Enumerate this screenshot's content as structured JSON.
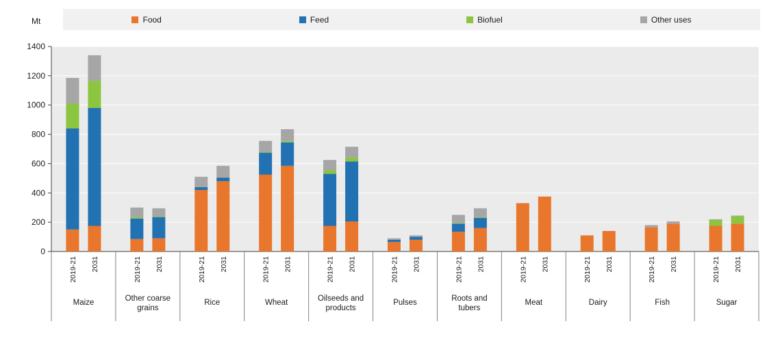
{
  "unit_label": "Mt",
  "legend": [
    {
      "label": "Food",
      "color": "#e8762c"
    },
    {
      "label": "Feed",
      "color": "#2271b3"
    },
    {
      "label": "Biofuel",
      "color": "#8cc540"
    },
    {
      "label": "Other uses",
      "color": "#a6a6a6"
    }
  ],
  "chart_data": {
    "type": "bar",
    "stacked": true,
    "title": "",
    "xlabel": "",
    "ylabel": "Mt",
    "ylim": [
      0,
      1400
    ],
    "ytick_step": 200,
    "grid": true,
    "legend_position": "top",
    "plot_bg": "#ebebeb",
    "grid_color": "#ffffff",
    "series_names": [
      "Food",
      "Feed",
      "Biofuel",
      "Other uses"
    ],
    "series_colors": [
      "#e8762c",
      "#2271b3",
      "#8cc540",
      "#a6a6a6"
    ],
    "bar_labels": [
      "2019-21",
      "2031"
    ],
    "groups": [
      {
        "name": "Maize",
        "bars": [
          {
            "label": "2019-21",
            "values": [
              150,
              690,
              170,
              175
            ]
          },
          {
            "label": "2031",
            "values": [
              175,
              805,
              185,
              175
            ]
          }
        ]
      },
      {
        "name": "Other coarse\ngrains",
        "bars": [
          {
            "label": "2019-21",
            "values": [
              85,
              140,
              10,
              65
            ]
          },
          {
            "label": "2031",
            "values": [
              90,
              145,
              5,
              55
            ]
          }
        ]
      },
      {
        "name": "Rice",
        "bars": [
          {
            "label": "2019-21",
            "values": [
              420,
              20,
              0,
              70
            ]
          },
          {
            "label": "2031",
            "values": [
              480,
              25,
              0,
              80
            ]
          }
        ]
      },
      {
        "name": "Wheat",
        "bars": [
          {
            "label": "2019-21",
            "values": [
              525,
              150,
              5,
              75
            ]
          },
          {
            "label": "2031",
            "values": [
              585,
              160,
              10,
              80
            ]
          }
        ]
      },
      {
        "name": "Oilseeds and\nproducts",
        "bars": [
          {
            "label": "2019-21",
            "values": [
              175,
              355,
              25,
              70
            ]
          },
          {
            "label": "2031",
            "values": [
              205,
              410,
              25,
              75
            ]
          }
        ]
      },
      {
        "name": "Pulses",
        "bars": [
          {
            "label": "2019-21",
            "values": [
              65,
              15,
              0,
              10
            ]
          },
          {
            "label": "2031",
            "values": [
              80,
              20,
              0,
              10
            ]
          }
        ]
      },
      {
        "name": "Roots and\ntubers",
        "bars": [
          {
            "label": "2019-21",
            "values": [
              135,
              55,
              5,
              55
            ]
          },
          {
            "label": "2031",
            "values": [
              160,
              70,
              5,
              60
            ]
          }
        ]
      },
      {
        "name": "Meat",
        "bars": [
          {
            "label": "2019-21",
            "values": [
              330,
              0,
              0,
              0
            ]
          },
          {
            "label": "2031",
            "values": [
              375,
              0,
              0,
              0
            ]
          }
        ]
      },
      {
        "name": "Dairy",
        "bars": [
          {
            "label": "2019-21",
            "values": [
              110,
              0,
              0,
              0
            ]
          },
          {
            "label": "2031",
            "values": [
              140,
              0,
              0,
              0
            ]
          }
        ]
      },
      {
        "name": "Fish",
        "bars": [
          {
            "label": "2019-21",
            "values": [
              165,
              0,
              0,
              15
            ]
          },
          {
            "label": "2031",
            "values": [
              190,
              0,
              0,
              15
            ]
          }
        ]
      },
      {
        "name": "Sugar",
        "bars": [
          {
            "label": "2019-21",
            "values": [
              175,
              0,
              40,
              5
            ]
          },
          {
            "label": "2031",
            "values": [
              190,
              0,
              50,
              5
            ]
          }
        ]
      }
    ]
  }
}
